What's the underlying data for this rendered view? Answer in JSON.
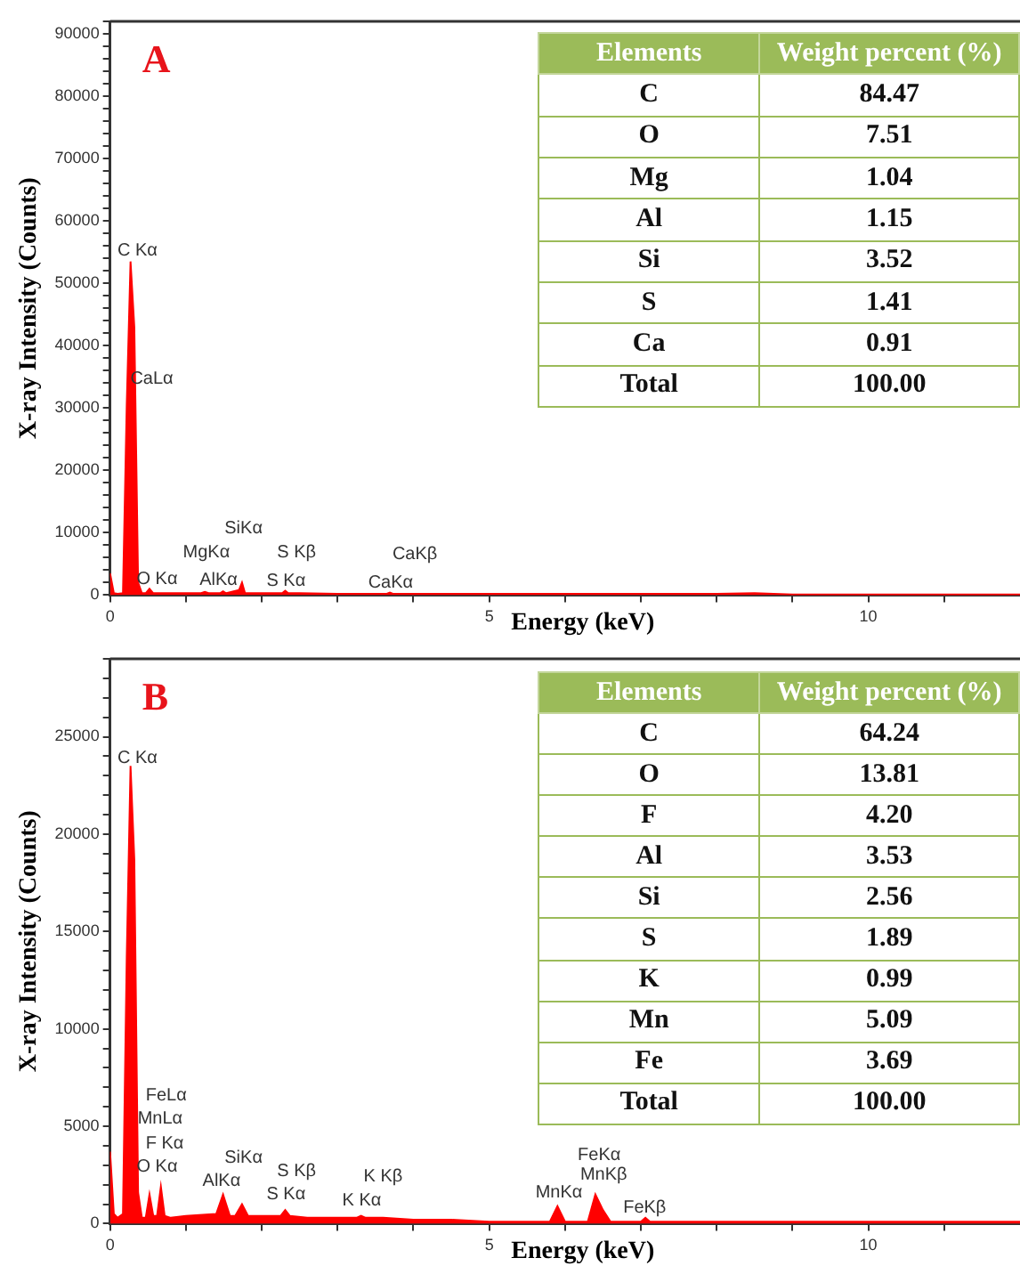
{
  "chart_data": [
    {
      "type": "area",
      "title": "A",
      "xlabel": "Energy (keV)",
      "ylabel": "X-ray Intensity (Counts)",
      "color": "#ff0000",
      "x": [
        0,
        0.05,
        0.1,
        0.17,
        0.22,
        0.27,
        0.32,
        0.37,
        0.42,
        0.47,
        0.52,
        0.57,
        0.65,
        1.0,
        1.2,
        1.25,
        1.3,
        1.45,
        1.49,
        1.53,
        1.7,
        1.74,
        1.78,
        2.0,
        2.27,
        2.31,
        2.35,
        2.5,
        3.0,
        3.65,
        3.69,
        3.73,
        4.0,
        5,
        6,
        7,
        8,
        8.5,
        9,
        10,
        11,
        12
      ],
      "values": [
        3500,
        300,
        200,
        300,
        30500,
        53500,
        43000,
        2000,
        300,
        300,
        1000,
        300,
        300,
        300,
        300,
        500,
        300,
        300,
        600,
        300,
        800,
        2000,
        300,
        300,
        300,
        700,
        300,
        300,
        200,
        200,
        400,
        200,
        200,
        200,
        200,
        200,
        200,
        300,
        100,
        100,
        100,
        100
      ],
      "xlim": [
        0,
        12
      ],
      "xticks": [
        0,
        {
          "value": 1,
          "label": null
        },
        {
          "value": 2,
          "label": null
        },
        {
          "value": 3,
          "label": null
        },
        {
          "value": 4,
          "label": null
        },
        5,
        {
          "value": 6,
          "label": null
        },
        {
          "value": 7,
          "label": null
        },
        {
          "value": 8,
          "label": null
        },
        {
          "value": 9,
          "label": null
        },
        10,
        {
          "value": 11,
          "label": null
        }
      ],
      "ylim": [
        0,
        92000
      ],
      "yticks": [
        0,
        {
          "value": 2000,
          "label": null
        },
        {
          "value": 4000,
          "label": null
        },
        {
          "value": 6000,
          "label": null
        },
        {
          "value": 8000,
          "label": null
        },
        10000,
        {
          "value": 12000,
          "label": null
        },
        {
          "value": 14000,
          "label": null
        },
        {
          "value": 16000,
          "label": null
        },
        {
          "value": 18000,
          "label": null
        },
        20000,
        {
          "value": 22000,
          "label": null
        },
        {
          "value": 24000,
          "label": null
        },
        {
          "value": 26000,
          "label": null
        },
        {
          "value": 28000,
          "label": null
        },
        30000,
        {
          "value": 32000,
          "label": null
        },
        {
          "value": 34000,
          "label": null
        },
        {
          "value": 36000,
          "label": null
        },
        {
          "value": 38000,
          "label": null
        },
        40000,
        {
          "value": 42000,
          "label": null
        },
        {
          "value": 44000,
          "label": null
        },
        {
          "value": 46000,
          "label": null
        },
        {
          "value": 48000,
          "label": null
        },
        50000,
        {
          "value": 52000,
          "label": null
        },
        {
          "value": 54000,
          "label": null
        },
        {
          "value": 56000,
          "label": null
        },
        {
          "value": 58000,
          "label": null
        },
        60000,
        {
          "value": 62000,
          "label": null
        },
        {
          "value": 64000,
          "label": null
        },
        {
          "value": 66000,
          "label": null
        },
        {
          "value": 68000,
          "label": null
        },
        70000,
        {
          "value": 72000,
          "label": null
        },
        {
          "value": 74000,
          "label": null
        },
        {
          "value": 76000,
          "label": null
        },
        {
          "value": 78000,
          "label": null
        },
        80000,
        {
          "value": 82000,
          "label": null
        },
        {
          "value": 84000,
          "label": null
        },
        {
          "value": 86000,
          "label": null
        },
        {
          "value": 88000,
          "label": null
        },
        90000,
        {
          "value": 92000,
          "label": null
        }
      ],
      "annotations": [
        "C Kα",
        "CaLα",
        "SiKα",
        "MgKα",
        "S Kβ",
        "CaKβ",
        "O Kα",
        "AlKα",
        "S Kα",
        "CaKα"
      ]
    },
    {
      "type": "other",
      "xlabel": "Elements",
      "ylabel": "Weight percent (%)",
      "categories": [
        "C",
        "O",
        "Mg",
        "Al",
        "Si",
        "S",
        "Ca",
        "Total"
      ],
      "values": [
        84.47,
        7.51,
        1.04,
        1.15,
        3.52,
        1.41,
        0.91,
        100.0
      ],
      "value_labels": [
        "84.47",
        "7.51",
        "1.04",
        "1.15",
        "3.52",
        "1.41",
        "0.91",
        "100.00"
      ]
    },
    {
      "type": "area",
      "title": "B",
      "xlabel": "Energy (keV)",
      "ylabel": "X-ray Intensity (Counts)",
      "color": "#ff0000",
      "x": [
        0,
        0.05,
        0.1,
        0.17,
        0.22,
        0.27,
        0.32,
        0.37,
        0.42,
        0.47,
        0.52,
        0.57,
        0.62,
        0.67,
        0.72,
        0.8,
        1.0,
        1.4,
        1.49,
        1.58,
        1.65,
        1.74,
        1.82,
        2.0,
        2.25,
        2.31,
        2.37,
        2.6,
        3.0,
        3.25,
        3.31,
        3.37,
        3.6,
        4.0,
        4.5,
        5.0,
        5.8,
        5.9,
        6.0,
        6.3,
        6.4,
        6.5,
        6.6,
        7.0,
        7.06,
        7.12,
        8.0,
        9.0,
        10.0,
        11.0,
        12.0
      ],
      "values": [
        3700,
        500,
        300,
        500,
        13700,
        23500,
        18700,
        1600,
        300,
        300,
        1500,
        400,
        400,
        1900,
        400,
        300,
        400,
        500,
        1500,
        400,
        400,
        1000,
        400,
        400,
        400,
        700,
        400,
        300,
        300,
        300,
        400,
        300,
        300,
        200,
        200,
        100,
        100,
        900,
        100,
        100,
        1500,
        700,
        100,
        100,
        300,
        100,
        100,
        100,
        100,
        100,
        100
      ],
      "xlim": [
        0,
        12
      ],
      "xticks": [
        0,
        {
          "value": 1,
          "label": null
        },
        {
          "value": 2,
          "label": null
        },
        {
          "value": 3,
          "label": null
        },
        {
          "value": 4,
          "label": null
        },
        5,
        {
          "value": 6,
          "label": null
        },
        {
          "value": 7,
          "label": null
        },
        {
          "value": 8,
          "label": null
        },
        {
          "value": 9,
          "label": null
        },
        10,
        {
          "value": 11,
          "label": null
        }
      ],
      "ylim": [
        0,
        29000
      ],
      "yticks": [
        0,
        {
          "value": 1000,
          "label": null
        },
        {
          "value": 2000,
          "label": null
        },
        {
          "value": 3000,
          "label": null
        },
        {
          "value": 4000,
          "label": null
        },
        5000,
        {
          "value": 6000,
          "label": null
        },
        {
          "value": 7000,
          "label": null
        },
        {
          "value": 8000,
          "label": null
        },
        {
          "value": 9000,
          "label": null
        },
        10000,
        {
          "value": 11000,
          "label": null
        },
        {
          "value": 12000,
          "label": null
        },
        {
          "value": 13000,
          "label": null
        },
        {
          "value": 14000,
          "label": null
        },
        15000,
        {
          "value": 16000,
          "label": null
        },
        {
          "value": 17000,
          "label": null
        },
        {
          "value": 18000,
          "label": null
        },
        {
          "value": 19000,
          "label": null
        },
        20000,
        {
          "value": 21000,
          "label": null
        },
        {
          "value": 22000,
          "label": null
        },
        {
          "value": 23000,
          "label": null
        },
        {
          "value": 24000,
          "label": null
        },
        25000,
        {
          "value": 26000,
          "label": null
        },
        {
          "value": 27000,
          "label": null
        },
        {
          "value": 28000,
          "label": null
        },
        {
          "value": 29000,
          "label": null
        }
      ],
      "annotations": [
        "C Kα",
        "FeLα",
        "MnLα",
        "F Kα",
        "O Kα",
        "SiKα",
        "S Kβ",
        "AlKα",
        "S Kα",
        "K Kβ",
        "K Kα",
        "FeKα",
        "MnKβ",
        "MnKα",
        "FeKβ"
      ]
    },
    {
      "type": "other",
      "xlabel": "Elements",
      "ylabel": "Weight percent (%)",
      "categories": [
        "C",
        "O",
        "F",
        "Al",
        "Si",
        "S",
        "K",
        "Mn",
        "Fe",
        "Total"
      ],
      "values": [
        64.24,
        13.81,
        4.2,
        3.53,
        2.56,
        1.89,
        0.99,
        5.09,
        3.69,
        100.0
      ],
      "value_labels": [
        "64.24",
        "13.81",
        "4.20",
        "3.53",
        "2.56",
        "1.89",
        "0.99",
        "5.09",
        "3.69",
        "100.00"
      ]
    }
  ]
}
